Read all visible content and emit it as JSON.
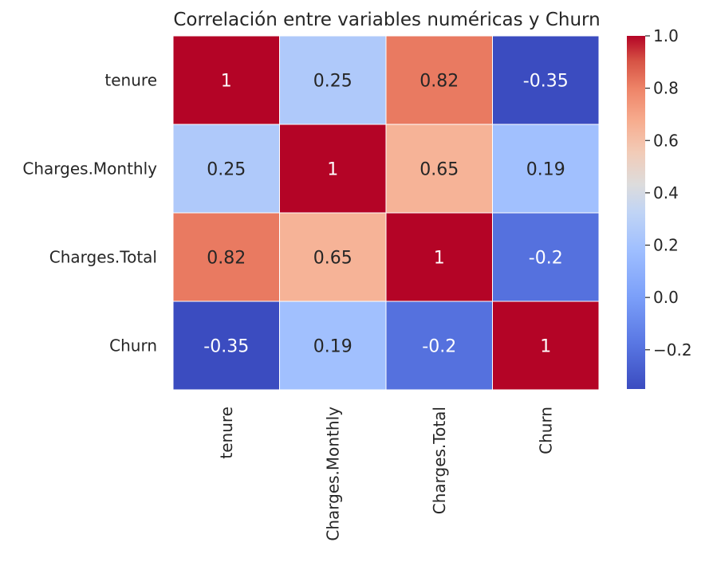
{
  "chart_data": {
    "type": "heatmap",
    "title": "Correlación entre variables numéricas y Churn",
    "rows": [
      "tenure",
      "Charges.Monthly",
      "Charges.Total",
      "Churn"
    ],
    "columns": [
      "tenure",
      "Charges.Monthly",
      "Charges.Total",
      "Churn"
    ],
    "values": [
      [
        1,
        0.25,
        0.82,
        -0.35
      ],
      [
        0.25,
        1,
        0.65,
        0.19
      ],
      [
        0.82,
        0.65,
        1,
        -0.2
      ],
      [
        -0.35,
        0.19,
        -0.2,
        1
      ]
    ],
    "cell_labels": [
      [
        "1",
        "0.25",
        "0.82",
        "-0.35"
      ],
      [
        "0.25",
        "1",
        "0.65",
        "0.19"
      ],
      [
        "0.82",
        "0.65",
        "1",
        "-0.2"
      ],
      [
        "-0.35",
        "0.19",
        "-0.2",
        "1"
      ]
    ],
    "colormap": "coolwarm",
    "colorbar": {
      "range": [
        -0.35,
        1.0
      ],
      "ticks": [
        -0.2,
        0.0,
        0.2,
        0.4,
        0.6,
        0.8,
        1.0
      ],
      "tick_labels": [
        "−0.2",
        "0.0",
        "0.2",
        "0.4",
        "0.6",
        "0.8",
        "1.0"
      ]
    },
    "grid": false,
    "legend": "colorbar-right"
  }
}
